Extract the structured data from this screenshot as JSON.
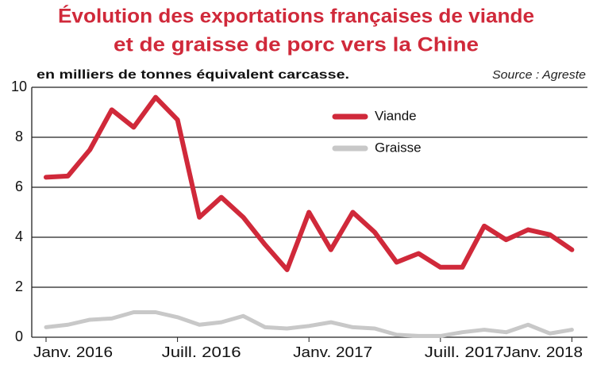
{
  "chart_data": {
    "type": "line",
    "title": [
      "Évolution des exportations françaises de viande",
      "et de graisse de porc vers la Chine"
    ],
    "subtitle": "en milliers de tonnes équivalent carcasse.",
    "source": "Source : Agreste",
    "categories": [
      "Janv. 2016",
      null,
      null,
      null,
      null,
      null,
      "Juill. 2016",
      null,
      null,
      null,
      null,
      null,
      "Janv. 2017",
      null,
      null,
      null,
      null,
      null,
      "Juill. 2017",
      null,
      null,
      null,
      null,
      null,
      "Janv. 2018"
    ],
    "series": [
      {
        "name": "Viande",
        "color": "#d0293a",
        "values": [
          6.4,
          6.45,
          7.5,
          9.1,
          8.4,
          9.6,
          8.7,
          4.8,
          5.6,
          4.8,
          3.7,
          2.7,
          5.0,
          3.5,
          5.0,
          4.2,
          3.0,
          3.35,
          2.8,
          2.8,
          4.45,
          3.9,
          4.3,
          4.1,
          3.5
        ]
      },
      {
        "name": "Graisse",
        "color": "#c8c8c8",
        "values": [
          0.4,
          0.5,
          0.7,
          0.75,
          1.0,
          1.0,
          0.8,
          0.5,
          0.6,
          0.85,
          0.4,
          0.35,
          0.45,
          0.6,
          0.4,
          0.35,
          0.1,
          0.05,
          0.05,
          0.2,
          0.3,
          0.2,
          0.5,
          0.15,
          0.3
        ]
      }
    ],
    "ylim": [
      0,
      10
    ],
    "yticks": [
      0,
      2,
      4,
      6,
      8,
      10
    ],
    "grid": true,
    "legend": "top-center"
  }
}
